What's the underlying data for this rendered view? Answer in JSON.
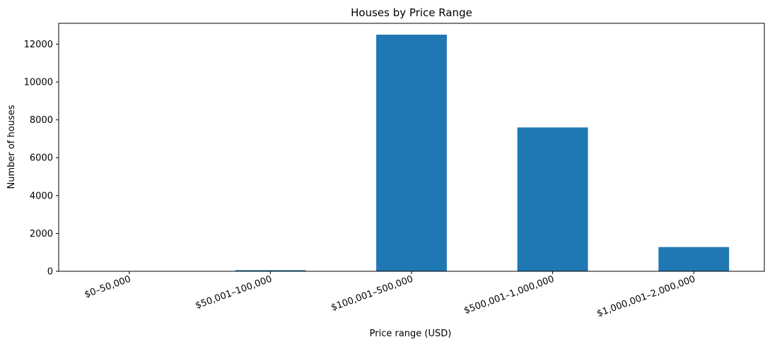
{
  "chart_data": {
    "type": "bar",
    "title": "Houses by Price Range",
    "xlabel": "Price range (USD)",
    "ylabel": "Number of houses",
    "categories": [
      "$0–50,000",
      "$50,001–100,000",
      "$100,001–500,000",
      "$500,001–1,000,000",
      "$1,000,001–2,000,000"
    ],
    "values": [
      5,
      60,
      12500,
      7600,
      1280
    ],
    "ylim": [
      0,
      13100
    ],
    "yticks": [
      0,
      2000,
      4000,
      6000,
      8000,
      10000,
      12000
    ],
    "ytick_labels": [
      "0",
      "2000",
      "4000",
      "6000",
      "8000",
      "10000",
      "12000"
    ],
    "bar_color": "#1f77b4",
    "grid": false,
    "legend": "none"
  }
}
